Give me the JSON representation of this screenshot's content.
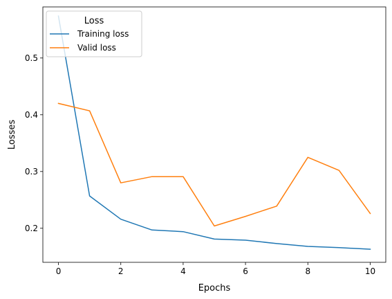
{
  "chart_data": {
    "type": "line",
    "title": "",
    "xlabel": "Epochs",
    "ylabel": "Losses",
    "xlim": [
      -0.5,
      10.5
    ],
    "ylim": [
      0.14,
      0.59
    ],
    "xticks": [
      0,
      2,
      4,
      6,
      8,
      10
    ],
    "yticks": [
      0.2,
      0.3,
      0.4,
      0.5
    ],
    "xtick_labels": [
      "0",
      "2",
      "4",
      "6",
      "8",
      "10"
    ],
    "ytick_labels": [
      "0.2",
      "0.3",
      "0.4",
      "0.5"
    ],
    "grid": false,
    "legend": {
      "title": "Loss",
      "placement": "top-left"
    },
    "x": [
      0,
      1,
      2,
      3,
      4,
      5,
      6,
      7,
      8,
      9,
      10
    ],
    "series": [
      {
        "name": "Training loss",
        "color": "#1f77b4",
        "values": [
          0.574,
          0.257,
          0.216,
          0.197,
          0.194,
          0.181,
          0.179,
          0.173,
          0.168,
          0.166,
          0.163
        ]
      },
      {
        "name": "Valid loss",
        "color": "#ff7f0e",
        "values": [
          0.42,
          0.407,
          0.28,
          0.291,
          0.291,
          0.204,
          0.221,
          0.239,
          0.325,
          0.302,
          0.226
        ]
      }
    ]
  }
}
